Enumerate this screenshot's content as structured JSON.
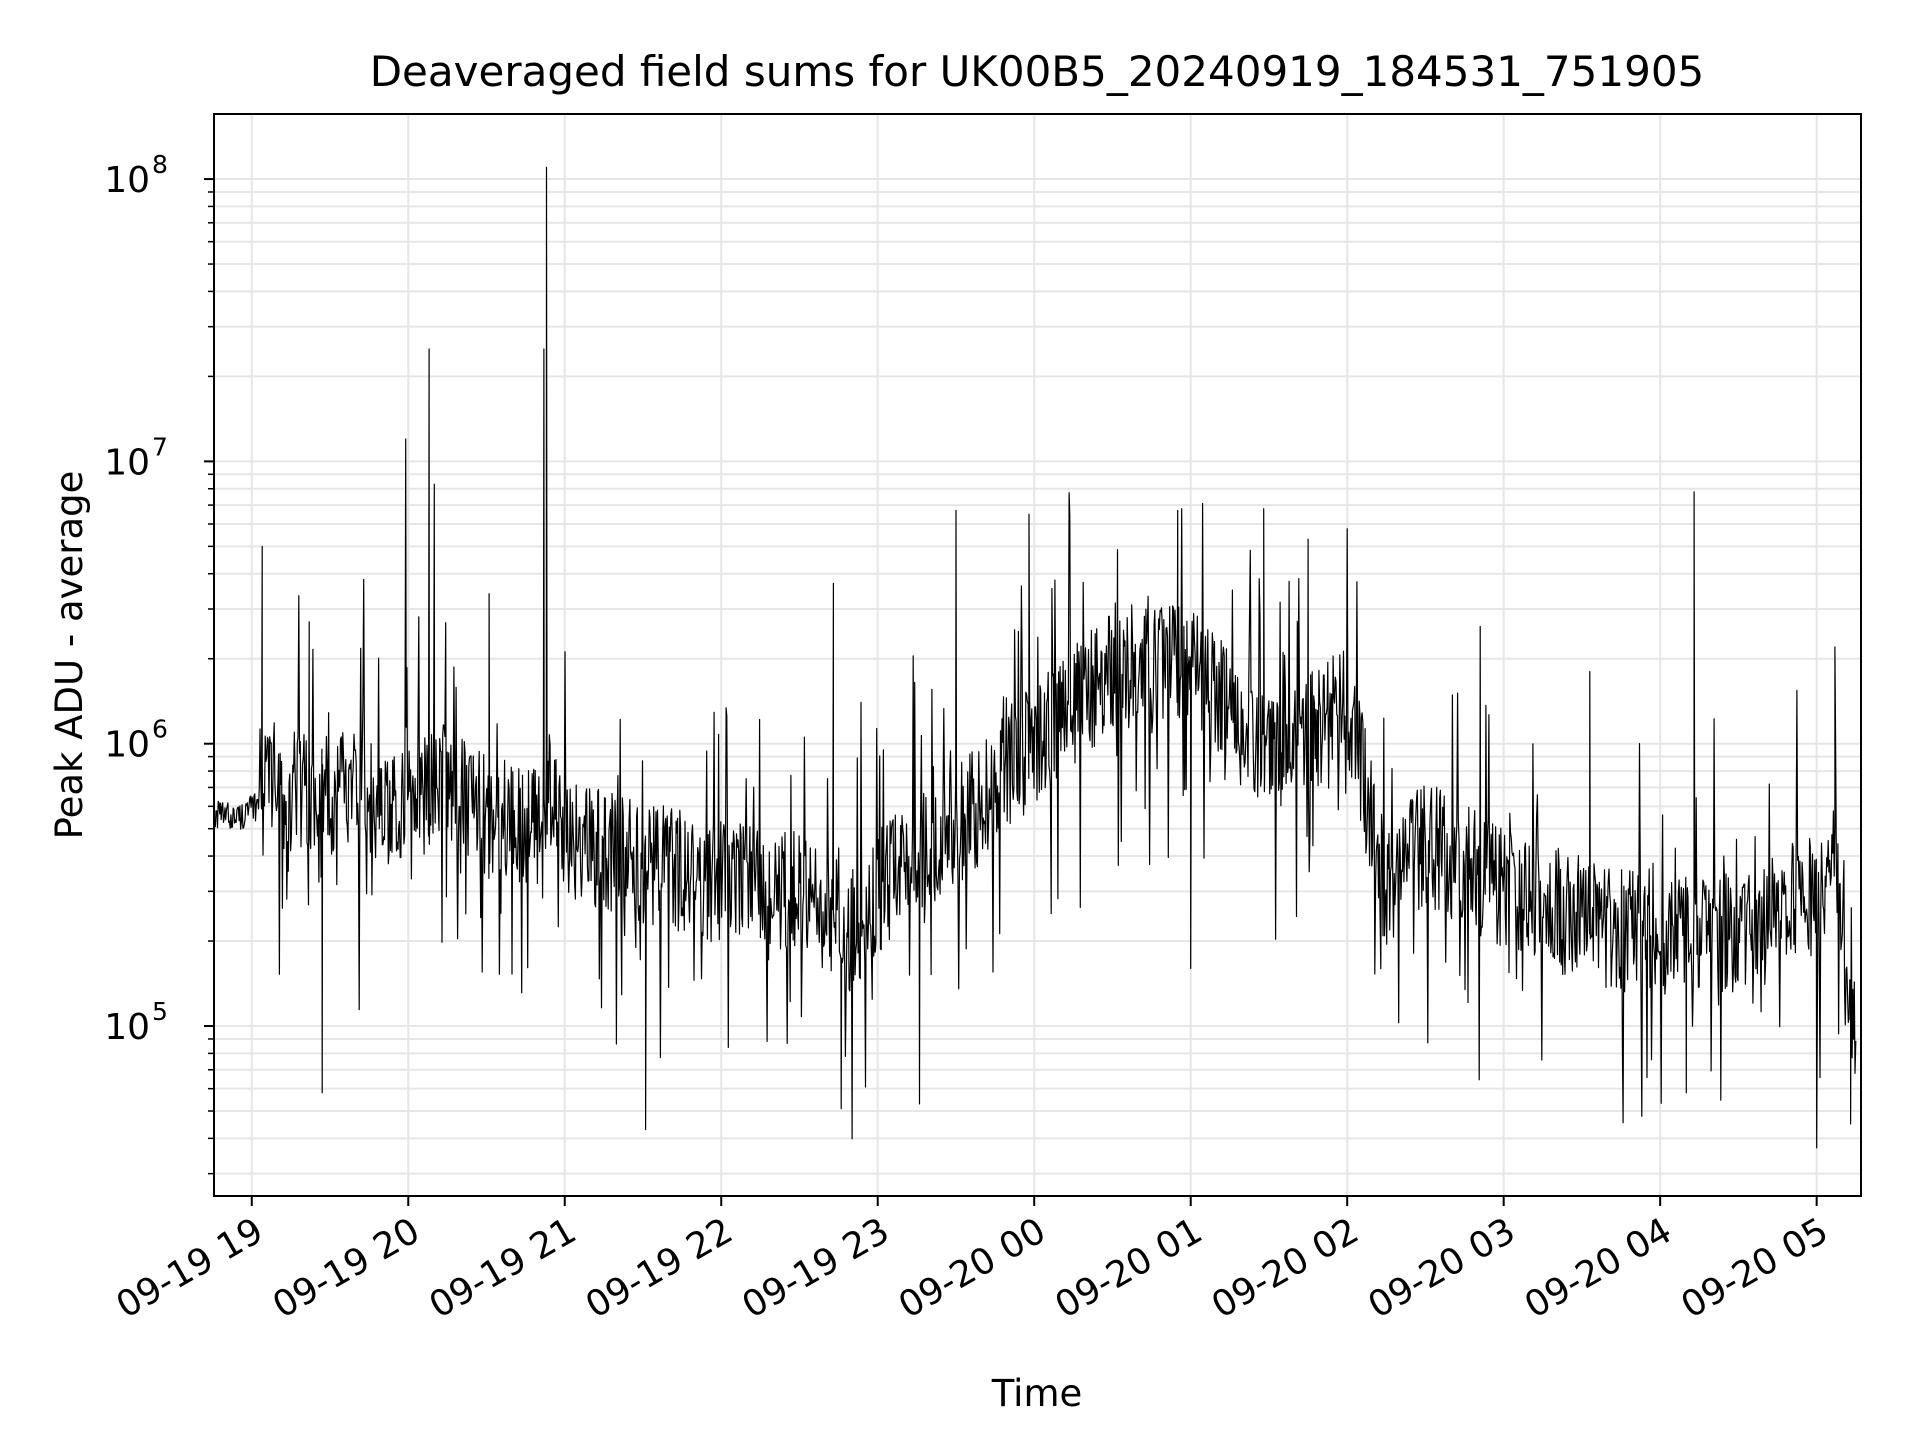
{
  "chart_data": {
    "type": "line",
    "title": "Deaveraged field sums for UK00B5_20240919_184531_751905",
    "xlabel": "Time",
    "ylabel": "Peak ADU - average",
    "yscale": "log",
    "ylim": [
      25000,
      170000000
    ],
    "xlim": [
      "2024-09-19 18:45:31",
      "2024-09-20 05:17:00"
    ],
    "x_ticks": [
      "09-19 19",
      "09-19 20",
      "09-19 21",
      "09-19 22",
      "09-19 23",
      "09-20 00",
      "09-20 01",
      "09-20 02",
      "09-20 03",
      "09-20 04",
      "09-20 05"
    ],
    "y_ticks": [
      {
        "base": "10",
        "exp": "5",
        "value": 100000
      },
      {
        "base": "10",
        "exp": "6",
        "value": 1000000
      },
      {
        "base": "10",
        "exp": "7",
        "value": 10000000
      },
      {
        "base": "10",
        "exp": "8",
        "value": 100000000
      }
    ],
    "grid": true,
    "series": [
      {
        "color": "#000000",
        "x": [
          "2024-09-19 18:46",
          "2024-09-19 18:55",
          "2024-09-19 19:02",
          "2024-09-19 19:05",
          "2024-09-19 19:12",
          "2024-09-19 19:20",
          "2024-09-19 19:27",
          "2024-09-19 19:45",
          "2024-09-19 19:58",
          "2024-09-19 20:00",
          "2024-09-19 20:08",
          "2024-09-19 20:10",
          "2024-09-19 20:30",
          "2024-09-19 20:52",
          "2024-09-19 20:53",
          "2024-09-19 21:00",
          "2024-09-19 21:30",
          "2024-09-19 22:00",
          "2024-09-19 22:30",
          "2024-09-19 22:40",
          "2024-09-19 22:48",
          "2024-09-19 23:00",
          "2024-09-19 23:30",
          "2024-09-20 00:00",
          "2024-09-20 00:15",
          "2024-09-20 00:30",
          "2024-09-20 00:45",
          "2024-09-20 01:00",
          "2024-09-20 01:15",
          "2024-09-20 01:30",
          "2024-09-20 01:45",
          "2024-09-20 02:00",
          "2024-09-20 02:15",
          "2024-09-20 02:30",
          "2024-09-20 03:00",
          "2024-09-20 03:30",
          "2024-09-20 04:00",
          "2024-09-20 04:13",
          "2024-09-20 04:30",
          "2024-09-20 05:00",
          "2024-09-20 05:05",
          "2024-09-20 05:10",
          "2024-09-20 05:15"
        ],
        "y": [
          560000,
          550000,
          600000,
          950000,
          650000,
          700000,
          680000,
          650000,
          600000,
          900000,
          600000,
          800000,
          550000,
          480000,
          800000,
          450000,
          380000,
          320000,
          300000,
          250000,
          200000,
          300000,
          500000,
          1000000,
          1400000,
          1800000,
          2000000,
          1900000,
          1300000,
          900000,
          1100000,
          1400000,
          300000,
          450000,
          300000,
          240000,
          200000,
          210000,
          220000,
          300000,
          500000,
          180000,
          80000
        ],
        "spikes": [
          {
            "x": "2024-09-19 19:04",
            "y": 5000000
          },
          {
            "x": "2024-09-19 19:22",
            "y": 2700000
          },
          {
            "x": "2024-09-19 19:59",
            "y": 12000000
          },
          {
            "x": "2024-09-19 20:08",
            "y": 25000000
          },
          {
            "x": "2024-09-19 20:10",
            "y": 8300000
          },
          {
            "x": "2024-09-19 20:31",
            "y": 3400000
          },
          {
            "x": "2024-09-19 20:52",
            "y": 25000000
          },
          {
            "x": "2024-09-19 20:53",
            "y": 110000000
          },
          {
            "x": "2024-09-19 22:43",
            "y": 3700000
          },
          {
            "x": "2024-09-19 23:30",
            "y": 6700000
          },
          {
            "x": "2024-09-19 23:58",
            "y": 6500000
          },
          {
            "x": "2024-09-20 00:55",
            "y": 6700000
          },
          {
            "x": "2024-09-20 01:28",
            "y": 6800000
          },
          {
            "x": "2024-09-20 01:45",
            "y": 5300000
          },
          {
            "x": "2024-09-20 02:51",
            "y": 2600000
          },
          {
            "x": "2024-09-20 03:33",
            "y": 1800000
          },
          {
            "x": "2024-09-20 04:13",
            "y": 7800000
          },
          {
            "x": "2024-09-20 05:07",
            "y": 2200000
          }
        ],
        "dips": [
          {
            "x": "2024-09-19 19:27",
            "y": 58000
          },
          {
            "x": "2024-09-19 21:31",
            "y": 43000
          },
          {
            "x": "2024-09-19 22:46",
            "y": 51000
          },
          {
            "x": "2024-09-19 23:16",
            "y": 53000
          },
          {
            "x": "2024-09-20 01:00",
            "y": 160000
          },
          {
            "x": "2024-09-20 04:10",
            "y": 58000
          },
          {
            "x": "2024-09-20 05:00",
            "y": 37000
          },
          {
            "x": "2024-09-20 05:13",
            "y": 45000
          }
        ]
      }
    ]
  }
}
